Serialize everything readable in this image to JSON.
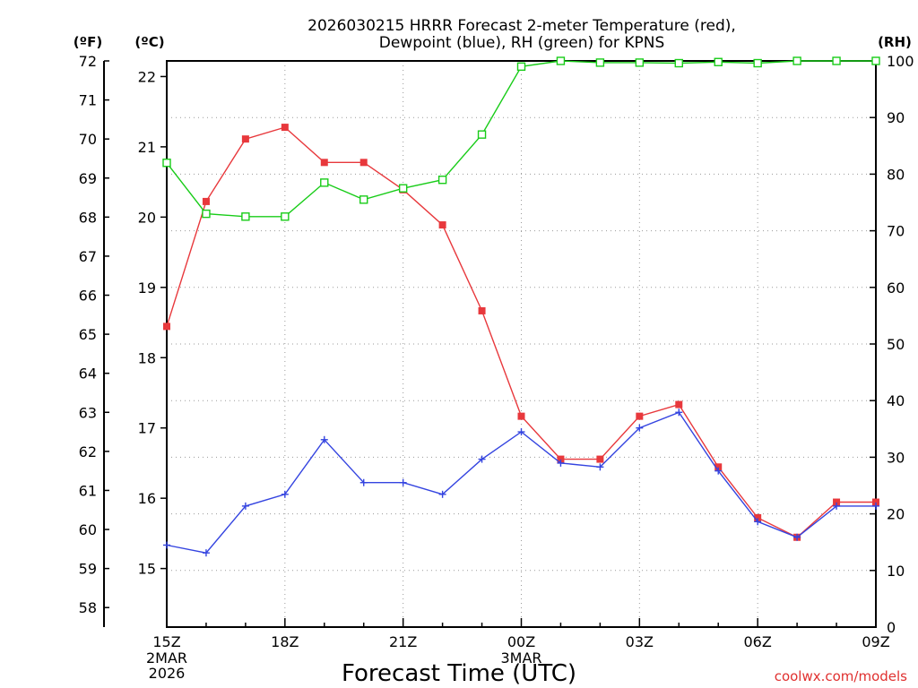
{
  "chart_data": {
    "type": "line",
    "title_line1": "2026030215 HRRR Forecast 2-meter Temperature (red),",
    "title_line2": "Dewpoint (blue), RH (green) for KPNS",
    "units": {
      "fahrenheit": "(ºF)",
      "celsius": "(ºC)",
      "rh": "(RH)"
    },
    "xlabel": "Forecast Time (UTC)",
    "x_ticks": [
      {
        "label": "15Z",
        "sub": [
          "2MAR",
          "2026"
        ]
      },
      {
        "label": "18Z",
        "sub": []
      },
      {
        "label": "21Z",
        "sub": []
      },
      {
        "label": "00Z",
        "sub": [
          "3MAR"
        ]
      },
      {
        "label": "03Z",
        "sub": []
      },
      {
        "label": "06Z",
        "sub": []
      },
      {
        "label": "09Z",
        "sub": []
      }
    ],
    "hours": [
      15,
      16,
      17,
      18,
      19,
      20,
      21,
      22,
      23,
      24,
      25,
      26,
      27,
      28,
      29,
      30,
      31,
      32,
      33
    ],
    "xlim": [
      15,
      33
    ],
    "f_axis": {
      "ylim": [
        57.5,
        72
      ],
      "ticks": [
        58,
        59,
        60,
        61,
        62,
        63,
        64,
        65,
        66,
        67,
        68,
        69,
        70,
        71,
        72
      ]
    },
    "c_axis": {
      "ticks": [
        15,
        16,
        17,
        18,
        19,
        20,
        21,
        22
      ]
    },
    "rh_axis": {
      "ylim": [
        0,
        100
      ],
      "ticks": [
        0,
        10,
        20,
        30,
        40,
        50,
        60,
        70,
        80,
        90,
        100
      ]
    },
    "grid": true,
    "series": [
      {
        "color": "#e8383c",
        "axis": "F",
        "marker": "filled-square",
        "values": [
          65.2,
          68.4,
          70.0,
          70.3,
          69.4,
          69.4,
          68.7,
          67.8,
          65.6,
          62.9,
          61.8,
          61.8,
          62.9,
          63.2,
          61.6,
          60.3,
          59.8,
          60.7,
          60.7
        ]
      },
      {
        "color": "#3444e0",
        "axis": "F",
        "marker": "plus",
        "values": [
          59.6,
          59.4,
          60.6,
          60.9,
          62.3,
          61.2,
          61.2,
          60.9,
          61.8,
          62.5,
          61.7,
          61.6,
          62.6,
          63.0,
          61.5,
          60.2,
          59.8,
          60.6,
          60.6
        ]
      },
      {
        "color": "#18cc18",
        "axis": "RH",
        "marker": "open-square",
        "values": [
          82,
          73,
          72.5,
          72.5,
          78.5,
          75.5,
          77.5,
          79,
          87,
          99,
          100,
          99.7,
          99.7,
          99.6,
          99.8,
          99.6,
          100,
          100,
          100
        ]
      }
    ],
    "credit": "coolwx.com/models"
  }
}
